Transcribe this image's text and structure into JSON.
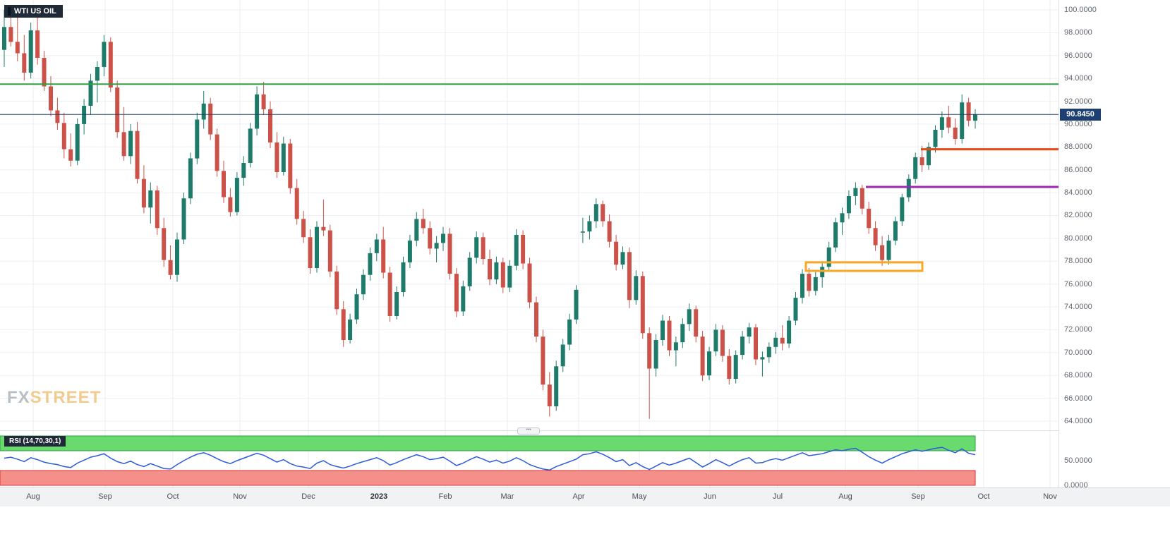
{
  "app": {
    "symbol_badge": "WTI US OIL"
  },
  "watermark": {
    "part1": "FX",
    "part2": "STREET"
  },
  "price_scale": {
    "ticks": [
      "100.0000",
      "98.0000",
      "96.0000",
      "94.0000",
      "92.0000",
      "90.0000",
      "88.0000",
      "86.0000",
      "84.0000",
      "82.0000",
      "80.0000",
      "78.0000",
      "76.0000",
      "74.0000",
      "72.0000",
      "70.0000",
      "68.0000",
      "66.0000",
      "64.0000"
    ],
    "last_price_label": "90.8450"
  },
  "time_scale": {
    "labels": [
      "Aug",
      "Sep",
      "Oct",
      "Nov",
      "Dec",
      "2023",
      "Feb",
      "Mar",
      "Apr",
      "May",
      "Jun",
      "Jul",
      "Aug",
      "Sep",
      "Oct",
      "Nov"
    ]
  },
  "rsi_panel": {
    "label": "RSI (14,70,30,1)",
    "ticks": [
      "50.0000",
      "0.0000"
    ]
  },
  "colors": {
    "candle_up": "#1e7b6a",
    "candle_down": "#cc5148",
    "grid_h": "#eef1f5",
    "grid_v": "#e9edf1",
    "level_green": "#2f9e44",
    "last_price_line": "#1d3f72",
    "level_orange_red": "#e64a19",
    "level_purple": "#9c27b0",
    "zone_orange": "#f9a825",
    "rsi_line": "#2b5cd9",
    "rsi_overbought_fill": "#69db6e",
    "rsi_overbought_edge": "#2f9e44",
    "rsi_oversold_fill": "#f58f89",
    "rsi_oversold_edge": "#e03131"
  },
  "chart_data": {
    "type": "candlestick",
    "title": "WTI US OIL",
    "last_price": 90.845,
    "price_axis": {
      "min": 64,
      "max": 100,
      "step": 2
    },
    "time_axis_labels": [
      "Aug",
      "Sep",
      "Oct",
      "Nov",
      "Dec",
      "2023",
      "Feb",
      "Mar",
      "Apr",
      "May",
      "Jun",
      "Jul",
      "Aug",
      "Sep",
      "Oct",
      "Nov"
    ],
    "candles_ohlc": [
      [
        96.5,
        100.0,
        95.0,
        98.5
      ],
      [
        98.5,
        100.3,
        96.8,
        97.2
      ],
      [
        97.2,
        99.5,
        95.5,
        96.2
      ],
      [
        96.2,
        97.8,
        93.8,
        94.5
      ],
      [
        94.5,
        98.9,
        94.0,
        98.2
      ],
      [
        98.2,
        99.6,
        95.2,
        95.8
      ],
      [
        95.8,
        96.4,
        92.9,
        93.3
      ],
      [
        93.3,
        94.2,
        90.7,
        91.2
      ],
      [
        91.2,
        92.3,
        89.5,
        90.1
      ],
      [
        90.1,
        91.0,
        87.0,
        87.8
      ],
      [
        87.8,
        89.2,
        86.3,
        86.8
      ],
      [
        86.8,
        90.5,
        86.4,
        90.0
      ],
      [
        90.0,
        92.2,
        89.1,
        91.6
      ],
      [
        91.6,
        94.4,
        90.8,
        93.8
      ],
      [
        93.8,
        95.5,
        91.9,
        95.0
      ],
      [
        95.0,
        97.8,
        94.2,
        97.2
      ],
      [
        97.2,
        97.6,
        92.8,
        93.2
      ],
      [
        93.2,
        93.8,
        88.8,
        89.3
      ],
      [
        89.3,
        91.5,
        86.8,
        87.2
      ],
      [
        87.2,
        90.0,
        86.5,
        89.4
      ],
      [
        89.4,
        90.2,
        84.8,
        85.2
      ],
      [
        85.2,
        86.4,
        82.2,
        82.7
      ],
      [
        82.7,
        84.9,
        81.3,
        84.2
      ],
      [
        84.2,
        84.6,
        80.3,
        80.9
      ],
      [
        80.9,
        81.8,
        77.5,
        78.1
      ],
      [
        78.1,
        79.4,
        76.4,
        76.8
      ],
      [
        76.8,
        80.5,
        76.2,
        79.9
      ],
      [
        79.9,
        84.0,
        79.5,
        83.5
      ],
      [
        83.5,
        87.5,
        83.0,
        87.0
      ],
      [
        87.0,
        91.0,
        86.5,
        90.4
      ],
      [
        90.4,
        92.9,
        89.6,
        91.8
      ],
      [
        91.8,
        92.3,
        88.6,
        89.1
      ],
      [
        89.1,
        89.6,
        85.4,
        85.9
      ],
      [
        85.9,
        86.8,
        83.1,
        83.6
      ],
      [
        83.6,
        84.4,
        81.9,
        82.3
      ],
      [
        82.3,
        85.8,
        82.0,
        85.3
      ],
      [
        85.3,
        87.2,
        84.6,
        86.6
      ],
      [
        86.6,
        90.1,
        86.2,
        89.6
      ],
      [
        89.6,
        93.3,
        89.0,
        92.6
      ],
      [
        92.6,
        93.7,
        90.8,
        91.3
      ],
      [
        91.3,
        92.0,
        87.9,
        88.4
      ],
      [
        88.4,
        89.3,
        85.3,
        85.8
      ],
      [
        85.8,
        88.9,
        85.5,
        88.3
      ],
      [
        88.3,
        88.7,
        83.9,
        84.4
      ],
      [
        84.4,
        85.2,
        81.2,
        81.7
      ],
      [
        81.7,
        82.4,
        79.6,
        80.1
      ],
      [
        80.1,
        80.8,
        76.9,
        77.4
      ],
      [
        77.4,
        81.5,
        77.0,
        81.0
      ],
      [
        81.0,
        83.4,
        80.2,
        80.7
      ],
      [
        80.7,
        81.2,
        76.6,
        77.1
      ],
      [
        77.1,
        77.6,
        73.3,
        73.8
      ],
      [
        73.8,
        74.5,
        70.5,
        71.1
      ],
      [
        71.1,
        73.4,
        70.8,
        72.9
      ],
      [
        72.9,
        75.6,
        72.5,
        75.1
      ],
      [
        75.1,
        77.3,
        74.6,
        76.8
      ],
      [
        76.8,
        79.2,
        76.3,
        78.7
      ],
      [
        78.7,
        80.4,
        78.0,
        79.9
      ],
      [
        79.9,
        81.0,
        76.5,
        77.0
      ],
      [
        77.0,
        77.5,
        72.7,
        73.2
      ],
      [
        73.2,
        75.8,
        72.9,
        75.3
      ],
      [
        75.3,
        78.4,
        74.9,
        77.9
      ],
      [
        77.9,
        80.3,
        77.4,
        79.8
      ],
      [
        79.8,
        82.3,
        79.3,
        81.7
      ],
      [
        81.7,
        82.6,
        80.4,
        80.9
      ],
      [
        80.9,
        81.5,
        78.6,
        79.1
      ],
      [
        79.1,
        80.2,
        77.9,
        79.6
      ],
      [
        79.6,
        81.0,
        78.9,
        80.4
      ],
      [
        80.4,
        80.9,
        76.4,
        76.9
      ],
      [
        76.9,
        77.4,
        73.1,
        73.6
      ],
      [
        73.6,
        76.3,
        73.2,
        75.8
      ],
      [
        75.8,
        78.8,
        75.4,
        78.3
      ],
      [
        78.3,
        80.6,
        77.8,
        80.1
      ],
      [
        80.1,
        80.5,
        77.7,
        78.2
      ],
      [
        78.2,
        79.0,
        75.9,
        76.4
      ],
      [
        76.4,
        78.4,
        76.0,
        77.9
      ],
      [
        77.9,
        78.3,
        75.2,
        75.7
      ],
      [
        75.7,
        78.1,
        75.3,
        77.6
      ],
      [
        77.6,
        80.8,
        77.2,
        80.3
      ],
      [
        80.3,
        80.7,
        77.3,
        77.8
      ],
      [
        77.8,
        78.3,
        73.9,
        74.4
      ],
      [
        74.4,
        74.9,
        70.9,
        71.4
      ],
      [
        71.4,
        72.0,
        66.7,
        67.2
      ],
      [
        67.2,
        68.3,
        64.4,
        65.3
      ],
      [
        65.3,
        69.3,
        64.9,
        68.8
      ],
      [
        68.8,
        71.2,
        68.3,
        70.7
      ],
      [
        70.7,
        73.4,
        70.2,
        72.9
      ],
      [
        72.9,
        75.9,
        72.5,
        75.5
      ],
      [
        80.5,
        81.8,
        79.6,
        80.6
      ],
      [
        80.6,
        82.0,
        79.9,
        81.5
      ],
      [
        81.5,
        83.5,
        80.9,
        83.0
      ],
      [
        83.0,
        83.3,
        81.0,
        81.5
      ],
      [
        81.5,
        82.1,
        79.2,
        79.7
      ],
      [
        79.7,
        80.3,
        77.2,
        77.7
      ],
      [
        77.7,
        79.3,
        77.3,
        78.8
      ],
      [
        78.8,
        79.2,
        73.9,
        74.6
      ],
      [
        74.6,
        77.2,
        74.2,
        76.7
      ],
      [
        76.7,
        77.1,
        71.2,
        71.7
      ],
      [
        71.7,
        72.2,
        64.2,
        68.6
      ],
      [
        68.6,
        71.6,
        67.9,
        71.1
      ],
      [
        71.1,
        73.3,
        70.6,
        72.8
      ],
      [
        72.8,
        73.2,
        69.7,
        70.2
      ],
      [
        70.2,
        71.4,
        68.8,
        70.9
      ],
      [
        70.9,
        73.0,
        70.4,
        72.5
      ],
      [
        72.5,
        74.3,
        71.9,
        73.8
      ],
      [
        73.8,
        74.1,
        70.9,
        71.4
      ],
      [
        71.4,
        71.9,
        67.5,
        68.0
      ],
      [
        68.0,
        70.5,
        67.6,
        70.1
      ],
      [
        70.1,
        72.5,
        69.7,
        72.0
      ],
      [
        72.0,
        72.4,
        69.2,
        69.7
      ],
      [
        69.7,
        70.3,
        67.2,
        67.7
      ],
      [
        67.7,
        70.2,
        67.3,
        69.8
      ],
      [
        69.8,
        71.9,
        69.4,
        71.4
      ],
      [
        71.4,
        72.6,
        70.8,
        72.2
      ],
      [
        72.2,
        72.5,
        68.9,
        69.4
      ],
      [
        69.4,
        70.1,
        67.9,
        69.6
      ],
      [
        69.6,
        70.9,
        69.1,
        70.5
      ],
      [
        70.5,
        71.8,
        69.9,
        71.3
      ],
      [
        71.3,
        72.4,
        70.2,
        70.8
      ],
      [
        70.8,
        73.2,
        70.4,
        72.8
      ],
      [
        72.8,
        75.3,
        72.4,
        74.8
      ],
      [
        74.8,
        77.3,
        74.3,
        76.9
      ],
      [
        76.9,
        77.4,
        74.9,
        75.4
      ],
      [
        75.4,
        77.1,
        75.0,
        76.6
      ],
      [
        76.6,
        78.0,
        75.7,
        77.5
      ],
      [
        77.5,
        79.7,
        77.1,
        79.2
      ],
      [
        79.2,
        81.8,
        78.8,
        81.4
      ],
      [
        81.4,
        82.7,
        80.3,
        82.2
      ],
      [
        82.2,
        84.2,
        81.7,
        83.7
      ],
      [
        83.7,
        84.9,
        82.9,
        84.4
      ],
      [
        84.4,
        84.7,
        82.1,
        82.6
      ],
      [
        82.6,
        83.2,
        80.4,
        80.9
      ],
      [
        80.9,
        81.5,
        78.9,
        79.4
      ],
      [
        79.4,
        80.2,
        77.6,
        78.1
      ],
      [
        78.1,
        80.3,
        77.7,
        79.8
      ],
      [
        79.8,
        81.9,
        79.4,
        81.5
      ],
      [
        81.5,
        83.9,
        81.1,
        83.6
      ],
      [
        83.6,
        85.6,
        83.2,
        85.2
      ],
      [
        85.2,
        87.5,
        84.8,
        87.1
      ],
      [
        87.1,
        88.1,
        85.8,
        86.4
      ],
      [
        86.4,
        88.4,
        86.0,
        88.0
      ],
      [
        88.0,
        89.9,
        87.5,
        89.5
      ],
      [
        89.5,
        91.1,
        88.8,
        90.6
      ],
      [
        90.6,
        91.6,
        89.2,
        89.7
      ],
      [
        89.7,
        90.5,
        88.2,
        88.7
      ],
      [
        88.7,
        92.6,
        88.3,
        91.9
      ],
      [
        91.9,
        92.3,
        89.8,
        90.3
      ],
      [
        90.3,
        91.3,
        89.6,
        90.845
      ]
    ],
    "drawings": {
      "horizontal_lines": [
        {
          "name": "resistance-line-green",
          "price": 93.5,
          "color": "#2f9e44",
          "width": 2,
          "from_frac": 0,
          "to_frac": 1
        },
        {
          "name": "last-price-line",
          "price": 90.845,
          "color": "#1d3f72",
          "width": 1,
          "from_frac": 0,
          "to_frac": 1
        }
      ],
      "segments": [
        {
          "name": "resistance-segment-orange-red",
          "price": 87.8,
          "color": "#e64a19",
          "width": 3,
          "from_frac": 0.87,
          "to_frac": 1.0
        },
        {
          "name": "support-segment-purple",
          "price": 84.5,
          "color": "#9c27b0",
          "width": 3,
          "from_frac": 0.818,
          "to_frac": 1.0
        }
      ],
      "rectangles": [
        {
          "name": "price-zone-orange",
          "price_top": 77.9,
          "price_bottom": 77.15,
          "color": "#f9a825",
          "width": 3,
          "from_frac": 0.761,
          "to_frac": 0.871
        }
      ]
    },
    "rsi": {
      "label": "RSI (14,70,30,1)",
      "settings": "14,70,30,1",
      "overbought": 70,
      "oversold": 30,
      "axis_ticks": [
        50,
        0
      ],
      "values": [
        55,
        57,
        53,
        48,
        56,
        52,
        47,
        44,
        42,
        38,
        36,
        45,
        51,
        57,
        60,
        64,
        55,
        48,
        44,
        49,
        42,
        38,
        44,
        39,
        34,
        33,
        42,
        50,
        57,
        63,
        66,
        61,
        54,
        48,
        44,
        50,
        55,
        60,
        65,
        61,
        54,
        47,
        52,
        44,
        39,
        37,
        34,
        45,
        50,
        42,
        38,
        35,
        39,
        44,
        48,
        52,
        56,
        50,
        41,
        46,
        52,
        57,
        62,
        58,
        52,
        54,
        57,
        49,
        40,
        45,
        52,
        58,
        53,
        47,
        51,
        45,
        49,
        56,
        50,
        42,
        37,
        33,
        31,
        38,
        43,
        48,
        53,
        62,
        64,
        68,
        63,
        56,
        48,
        52,
        40,
        46,
        38,
        32,
        39,
        46,
        41,
        45,
        50,
        55,
        46,
        37,
        44,
        52,
        46,
        39,
        46,
        52,
        56,
        45,
        46,
        51,
        54,
        51,
        56,
        61,
        66,
        60,
        62,
        64,
        68,
        72,
        70,
        73,
        75,
        67,
        58,
        51,
        45,
        52,
        58,
        64,
        68,
        72,
        69,
        72,
        75,
        77,
        71,
        66,
        74,
        65,
        62
      ]
    }
  }
}
